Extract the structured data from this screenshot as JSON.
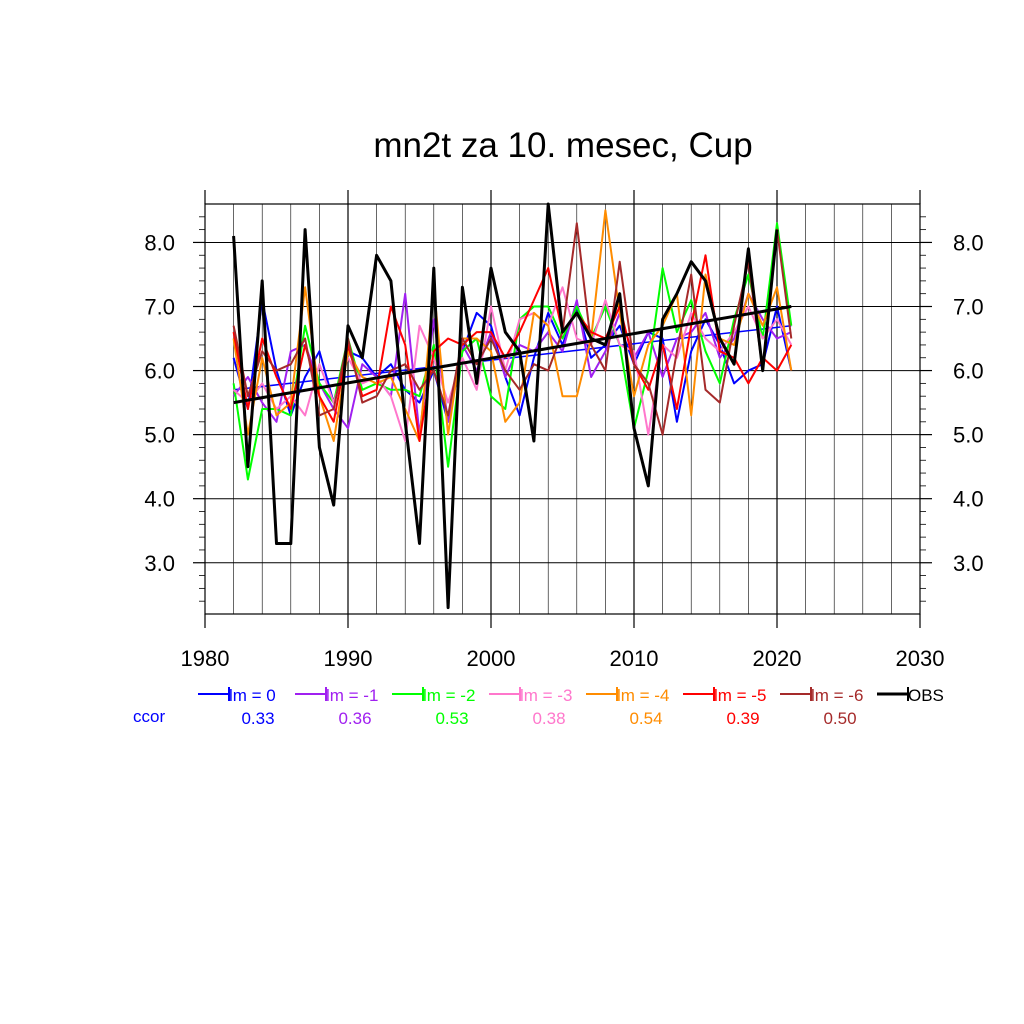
{
  "chart_data": {
    "type": "line",
    "title": "mn2t za 10. mesec, Cup",
    "xlabel": "",
    "ylabel": "",
    "xlim": [
      1980,
      2030
    ],
    "ylim": [
      2.2,
      8.6
    ],
    "x_ticks": [
      1980,
      1990,
      2000,
      2010,
      2020,
      2030
    ],
    "x_tick_labels": [
      "1980",
      "1990",
      "2000",
      "2010",
      "2020",
      "2030"
    ],
    "y_ticks": [
      3,
      4,
      5,
      6,
      7,
      8
    ],
    "y_tick_labels": [
      "3.0",
      "4.0",
      "5.0",
      "6.0",
      "7.0",
      "8.0"
    ],
    "grid": true,
    "legend_position": "bottom",
    "ccor_label": "ccor",
    "x": [
      1982,
      1983,
      1984,
      1985,
      1986,
      1987,
      1988,
      1989,
      1990,
      1991,
      1992,
      1993,
      1994,
      1995,
      1996,
      1997,
      1998,
      1999,
      2000,
      2001,
      2002,
      2003,
      2004,
      2005,
      2006,
      2007,
      2008,
      2009,
      2010,
      2011,
      2012,
      2013,
      2014,
      2015,
      2016,
      2017,
      2018,
      2019,
      2020,
      2021
    ],
    "series": [
      {
        "name": "lm = 0",
        "color": "#0000ff",
        "ccor": "0.33",
        "trend": [
          5.7,
          6.7
        ],
        "values": [
          6.2,
          5.4,
          7.1,
          6.0,
          5.3,
          5.9,
          6.3,
          5.5,
          6.3,
          6.2,
          5.9,
          6.1,
          5.7,
          5.5,
          6.0,
          5.2,
          6.3,
          6.9,
          6.7,
          5.9,
          5.3,
          6.2,
          6.9,
          6.4,
          7.0,
          6.2,
          6.4,
          6.7,
          6.1,
          6.6,
          6.5,
          5.2,
          6.3,
          6.8,
          6.4,
          5.8,
          6.0,
          6.1,
          7.0,
          6.0
        ]
      },
      {
        "name": "lm = -1",
        "color": "#a020f0",
        "ccor": "0.36",
        "trend": null,
        "values": [
          5.6,
          5.9,
          5.5,
          5.2,
          6.3,
          6.4,
          5.8,
          5.4,
          5.1,
          6.1,
          5.9,
          5.6,
          7.2,
          5.0,
          6.8,
          5.2,
          6.4,
          6.0,
          6.6,
          5.9,
          6.4,
          6.3,
          6.6,
          6.3,
          7.1,
          5.9,
          6.3,
          6.9,
          6.2,
          6.6,
          5.9,
          6.5,
          6.6,
          6.9,
          6.2,
          6.5,
          7.2,
          6.8,
          6.5,
          6.6
        ]
      },
      {
        "name": "lm = -2",
        "color": "#00ff00",
        "ccor": "0.53",
        "trend": null,
        "values": [
          5.8,
          4.3,
          5.4,
          5.4,
          5.3,
          6.7,
          5.8,
          5.5,
          6.5,
          5.7,
          5.8,
          5.7,
          5.7,
          5.6,
          6.4,
          4.5,
          6.3,
          6.5,
          5.6,
          5.4,
          6.8,
          7.0,
          7.0,
          6.5,
          7.0,
          6.5,
          7.0,
          6.4,
          5.1,
          6.0,
          7.6,
          6.6,
          7.1,
          6.3,
          5.8,
          6.8,
          7.5,
          6.5,
          8.3,
          6.7
        ]
      },
      {
        "name": "lm = -3",
        "color": "#ff77cc",
        "ccor": "0.38",
        "trend": null,
        "values": [
          5.7,
          5.5,
          5.8,
          5.4,
          5.6,
          5.3,
          6.1,
          5.5,
          6.2,
          5.8,
          5.9,
          5.6,
          4.9,
          6.7,
          6.2,
          5.5,
          6.2,
          5.7,
          7.0,
          6.0,
          6.8,
          6.9,
          6.7,
          7.3,
          6.5,
          6.4,
          7.1,
          6.4,
          6.3,
          5.0,
          6.4,
          6.2,
          6.9,
          6.5,
          6.3,
          6.6,
          7.0,
          6.5,
          6.8,
          6.4
        ]
      },
      {
        "name": "lm = -4",
        "color": "#ff8c00",
        "ccor": "0.54",
        "trend": null,
        "values": [
          6.5,
          5.0,
          6.2,
          5.3,
          5.5,
          7.3,
          5.6,
          4.9,
          6.3,
          5.9,
          5.8,
          5.9,
          5.4,
          4.9,
          7.3,
          5.0,
          6.5,
          6.5,
          6.3,
          5.2,
          5.5,
          6.9,
          6.7,
          5.6,
          5.6,
          6.5,
          8.5,
          6.9,
          5.6,
          6.4,
          6.7,
          7.2,
          5.3,
          7.5,
          6.5,
          6.4,
          7.2,
          6.7,
          7.3,
          6.0
        ]
      },
      {
        "name": "lm = -5",
        "color": "#ff0000",
        "ccor": "0.39",
        "trend": null,
        "values": [
          6.6,
          5.4,
          6.5,
          5.9,
          5.4,
          6.4,
          5.6,
          5.2,
          6.4,
          5.6,
          5.7,
          7.0,
          6.4,
          4.9,
          6.3,
          6.5,
          6.4,
          6.6,
          6.6,
          6.2,
          6.6,
          7.1,
          7.6,
          6.6,
          6.9,
          6.6,
          6.5,
          7.0,
          6.1,
          5.7,
          6.4,
          5.4,
          6.7,
          7.8,
          6.3,
          6.2,
          5.8,
          6.2,
          6.0,
          6.4
        ]
      },
      {
        "name": "lm = -6",
        "color": "#a52a2a",
        "ccor": "0.50",
        "trend": null,
        "values": [
          6.7,
          5.6,
          6.3,
          6.0,
          6.1,
          6.5,
          5.3,
          5.4,
          6.5,
          5.5,
          5.6,
          6.0,
          6.1,
          5.7,
          6.0,
          5.3,
          6.5,
          6.1,
          6.5,
          6.0,
          5.7,
          6.1,
          6.0,
          6.6,
          8.3,
          6.4,
          6.0,
          7.7,
          6.1,
          5.8,
          5.0,
          6.3,
          7.5,
          5.7,
          5.5,
          6.7,
          7.7,
          6.0,
          8.2,
          6.5
        ]
      },
      {
        "name": "OBS",
        "color": "#000000",
        "ccor": "",
        "trend": [
          5.5,
          7.0
        ],
        "values": [
          8.1,
          4.5,
          7.4,
          3.3,
          3.3,
          8.2,
          4.8,
          3.9,
          6.7,
          6.2,
          7.8,
          7.4,
          5.2,
          3.3,
          7.6,
          2.3,
          7.3,
          5.8,
          7.6,
          6.6,
          6.3,
          4.9,
          8.6,
          6.6,
          6.9,
          6.5,
          6.4,
          7.2,
          5.1,
          4.2,
          6.8,
          7.2,
          7.7,
          7.4,
          6.5,
          6.1,
          7.9,
          6.0,
          8.2,
          null
        ]
      }
    ]
  }
}
